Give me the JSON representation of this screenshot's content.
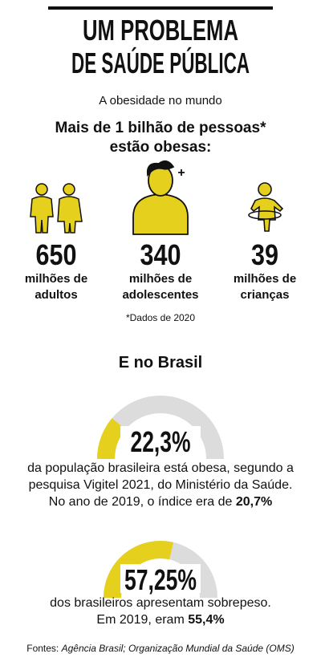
{
  "title_lines": [
    "UM PROBLEMA",
    "DE SAÚDE PÚBLICA"
  ],
  "subtitle": "A obesidade no mundo",
  "headline": [
    "Mais de 1 bilhão de pessoas*",
    "estão obesas:"
  ],
  "groups": [
    {
      "value": 650,
      "label": [
        "milhões de",
        "adultos"
      ]
    },
    {
      "value": 340,
      "label": [
        "milhões de",
        "adolescentes"
      ]
    },
    {
      "value": 39,
      "label": [
        "milhões de",
        "crianças"
      ]
    }
  ],
  "footnote": "*Dados de 2020",
  "brasil": {
    "title": "E no Brasil",
    "scale": [
      0,
      100
    ],
    "color": "#e6d01e",
    "track_color": "#dcdcdc",
    "gauges": [
      {
        "value": 22.3,
        "value_label": "22,3%",
        "lines": [
          [
            "da população brasileira está obesa, segundo a"
          ],
          [
            "pesquisa Vigitel 2021, do Ministério da Saúde."
          ],
          [
            "No ano de 2019, o índice era de ",
            "20,7%"
          ]
        ]
      },
      {
        "value": 57.25,
        "value_label": "57,25%",
        "lines": [
          [
            "dos brasileiros apresentam sobrepeso."
          ],
          [
            "Em 2019, eram ",
            "55,4%"
          ]
        ]
      }
    ]
  },
  "sources_label": "Fontes: ",
  "sources": "Agência Brasil; Organização Mundial da Saúde (OMS)"
}
